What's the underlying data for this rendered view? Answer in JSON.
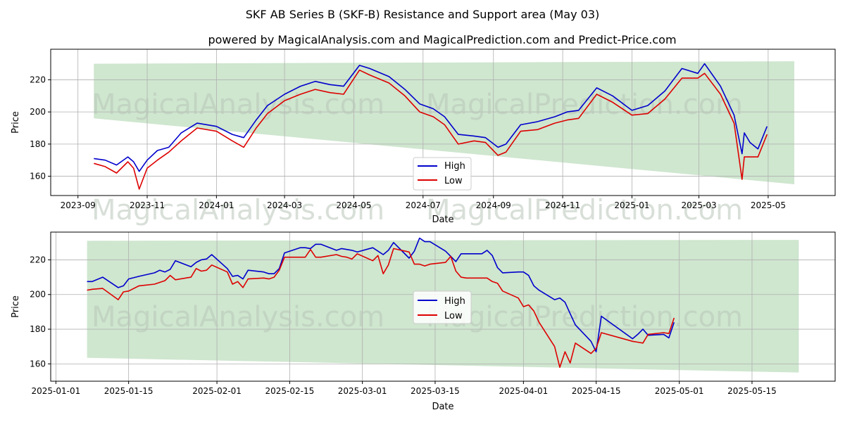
{
  "title": "SKF AB Series B (SKF-B) Resistance and Support area (May 03)",
  "subtitle": "powered by MagicalAnalysis.com and MagicalPrediction.com and Predict-Price.com",
  "watermarks": [
    "MagicalAnalysis.com",
    "MagicalPrediction.com"
  ],
  "colors": {
    "high": "#0000cc",
    "low": "#dd0000",
    "band": "#cfe6cf",
    "grid": "#b0b0b0"
  },
  "chart_data": [
    {
      "type": "line",
      "xlabel": "Date",
      "ylabel": "Price",
      "grid": true,
      "legend": "center",
      "xlim": [
        "2023-08-08",
        "2025-06-29"
      ],
      "ylim": [
        148,
        239
      ],
      "x_ticks": [
        "2023-09",
        "2023-11",
        "2024-01",
        "2024-03",
        "2024-05",
        "2024-07",
        "2024-09",
        "2024-11",
        "2025-01",
        "2025-03",
        "2025-05"
      ],
      "y_ticks": [
        160,
        180,
        200,
        220
      ],
      "band": {
        "x": [
          "2023-09-15",
          "2025-05-24"
        ],
        "upper": [
          230,
          231.5
        ],
        "lower": [
          196,
          155
        ]
      },
      "series": [
        {
          "name": "High",
          "color": "#0000cc",
          "x": [
            "2023-09-15",
            "2023-09-25",
            "2023-10-05",
            "2023-10-15",
            "2023-10-20",
            "2023-10-25",
            "2023-11-01",
            "2023-11-10",
            "2023-11-20",
            "2023-12-01",
            "2023-12-15",
            "2024-01-01",
            "2024-01-15",
            "2024-01-25",
            "2024-02-05",
            "2024-02-15",
            "2024-03-01",
            "2024-03-15",
            "2024-03-28",
            "2024-04-10",
            "2024-04-22",
            "2024-05-06",
            "2024-05-15",
            "2024-06-01",
            "2024-06-15",
            "2024-06-28",
            "2024-07-10",
            "2024-07-20",
            "2024-08-01",
            "2024-08-15",
            "2024-08-25",
            "2024-09-05",
            "2024-09-12",
            "2024-09-25",
            "2024-10-10",
            "2024-10-25",
            "2024-11-05",
            "2024-11-15",
            "2024-12-01",
            "2024-12-15",
            "2025-01-01",
            "2025-01-15",
            "2025-01-30",
            "2025-02-14",
            "2025-02-28",
            "2025-03-06",
            "2025-03-20",
            "2025-04-01",
            "2025-04-08",
            "2025-04-10",
            "2025-04-15",
            "2025-04-22",
            "2025-04-30"
          ],
          "values": [
            171,
            170,
            167,
            172,
            169,
            163,
            170,
            176,
            178,
            187,
            193,
            191,
            186,
            184,
            195,
            204,
            211,
            216,
            219,
            217,
            216,
            229,
            227,
            222,
            214,
            205,
            202,
            197,
            186,
            185,
            184,
            178,
            180,
            192,
            194,
            197,
            200,
            201,
            215,
            210,
            201,
            204,
            213,
            227,
            224,
            230,
            216,
            198,
            174,
            187,
            181,
            177,
            191
          ]
        },
        {
          "name": "Low",
          "color": "#dd0000",
          "x": [
            "2023-09-15",
            "2023-09-25",
            "2023-10-05",
            "2023-10-15",
            "2023-10-20",
            "2023-10-25",
            "2023-11-01",
            "2023-11-10",
            "2023-11-20",
            "2023-12-01",
            "2023-12-15",
            "2024-01-01",
            "2024-01-15",
            "2024-01-25",
            "2024-02-05",
            "2024-02-15",
            "2024-03-01",
            "2024-03-15",
            "2024-03-28",
            "2024-04-10",
            "2024-04-22",
            "2024-05-06",
            "2024-05-15",
            "2024-06-01",
            "2024-06-15",
            "2024-06-28",
            "2024-07-10",
            "2024-07-20",
            "2024-08-01",
            "2024-08-15",
            "2024-08-25",
            "2024-09-05",
            "2024-09-12",
            "2024-09-25",
            "2024-10-10",
            "2024-10-25",
            "2024-11-05",
            "2024-11-15",
            "2024-12-01",
            "2024-12-15",
            "2025-01-01",
            "2025-01-15",
            "2025-01-30",
            "2025-02-14",
            "2025-02-28",
            "2025-03-06",
            "2025-03-20",
            "2025-04-01",
            "2025-04-08",
            "2025-04-10",
            "2025-04-15",
            "2025-04-22",
            "2025-04-30"
          ],
          "values": [
            168,
            166,
            162,
            169,
            165,
            152,
            165,
            170,
            175,
            182,
            190,
            188,
            182,
            178,
            190,
            199,
            207,
            211,
            214,
            212,
            211,
            226,
            223,
            218,
            210,
            200,
            197,
            192,
            180,
            182,
            181,
            173,
            175,
            188,
            189,
            193,
            195,
            196,
            211,
            206,
            198,
            199,
            208,
            221,
            221,
            224,
            211,
            193,
            158,
            172,
            172,
            172,
            186
          ]
        }
      ]
    },
    {
      "type": "line",
      "xlabel": "Date",
      "ylabel": "Price",
      "grid": true,
      "legend": "center",
      "xlim": [
        "2024-12-31",
        "2025-05-31"
      ],
      "ylim": [
        150,
        236
      ],
      "x_ticks": [
        "2025-01-01",
        "2025-01-15",
        "2025-02-01",
        "2025-02-15",
        "2025-03-01",
        "2025-03-15",
        "2025-04-01",
        "2025-04-15",
        "2025-05-01",
        "2025-05-15"
      ],
      "y_ticks": [
        160,
        180,
        200,
        220
      ],
      "band": {
        "x": [
          "2025-01-07",
          "2025-05-24"
        ],
        "upper": [
          231,
          231.5
        ],
        "lower": [
          163.5,
          155
        ]
      },
      "series": [
        {
          "name": "High",
          "color": "#0000cc",
          "x": [
            "2025-01-07",
            "2025-01-08",
            "2025-01-10",
            "2025-01-13",
            "2025-01-14",
            "2025-01-15",
            "2025-01-17",
            "2025-01-20",
            "2025-01-21",
            "2025-01-22",
            "2025-01-23",
            "2025-01-24",
            "2025-01-27",
            "2025-01-28",
            "2025-01-29",
            "2025-01-30",
            "2025-01-31",
            "2025-02-03",
            "2025-02-04",
            "2025-02-05",
            "2025-02-06",
            "2025-02-07",
            "2025-02-10",
            "2025-02-11",
            "2025-02-12",
            "2025-02-13",
            "2025-02-14",
            "2025-02-17",
            "2025-02-18",
            "2025-02-19",
            "2025-02-20",
            "2025-02-21",
            "2025-02-24",
            "2025-02-25",
            "2025-02-26",
            "2025-02-27",
            "2025-02-28",
            "2025-03-03",
            "2025-03-04",
            "2025-03-05",
            "2025-03-06",
            "2025-03-07",
            "2025-03-10",
            "2025-03-11",
            "2025-03-12",
            "2025-03-13",
            "2025-03-14",
            "2025-03-17",
            "2025-03-18",
            "2025-03-19",
            "2025-03-20",
            "2025-03-21",
            "2025-03-24",
            "2025-03-25",
            "2025-03-26",
            "2025-03-27",
            "2025-03-28",
            "2025-03-31",
            "2025-04-01",
            "2025-04-02",
            "2025-04-03",
            "2025-04-04",
            "2025-04-07",
            "2025-04-08",
            "2025-04-09",
            "2025-04-10",
            "2025-04-11",
            "2025-04-14",
            "2025-04-15",
            "2025-04-16",
            "2025-04-22",
            "2025-04-23",
            "2025-04-24",
            "2025-04-25",
            "2025-04-28",
            "2025-04-29",
            "2025-04-30"
          ],
          "values": [
            207.5,
            207.5,
            210,
            204,
            205,
            209,
            210.5,
            212.5,
            214,
            213,
            214.5,
            219.5,
            216,
            218.5,
            220,
            220.5,
            223,
            215,
            210.5,
            211,
            209,
            214,
            213,
            212,
            212,
            215,
            224,
            227,
            227,
            226.5,
            229,
            229,
            225.5,
            226.5,
            226,
            225.5,
            224.5,
            227,
            225,
            223,
            225.5,
            230,
            221,
            225,
            232.5,
            230.5,
            230.5,
            225,
            222,
            219,
            223.5,
            223.5,
            223.5,
            225.5,
            222.5,
            215.5,
            212.5,
            213,
            213,
            211,
            205,
            202.5,
            197,
            198,
            195.5,
            189,
            182.5,
            173,
            167,
            187.5,
            174.5,
            177,
            180,
            176.5,
            177,
            175,
            184
          ]
        },
        {
          "name": "Low",
          "color": "#dd0000",
          "x": [
            "2025-01-07",
            "2025-01-08",
            "2025-01-10",
            "2025-01-13",
            "2025-01-14",
            "2025-01-15",
            "2025-01-17",
            "2025-01-20",
            "2025-01-21",
            "2025-01-22",
            "2025-01-23",
            "2025-01-24",
            "2025-01-27",
            "2025-01-28",
            "2025-01-29",
            "2025-01-30",
            "2025-01-31",
            "2025-02-03",
            "2025-02-04",
            "2025-02-05",
            "2025-02-06",
            "2025-02-07",
            "2025-02-10",
            "2025-02-11",
            "2025-02-12",
            "2025-02-13",
            "2025-02-14",
            "2025-02-17",
            "2025-02-18",
            "2025-02-19",
            "2025-02-20",
            "2025-02-21",
            "2025-02-24",
            "2025-02-25",
            "2025-02-26",
            "2025-02-27",
            "2025-02-28",
            "2025-03-03",
            "2025-03-04",
            "2025-03-05",
            "2025-03-06",
            "2025-03-07",
            "2025-03-10",
            "2025-03-11",
            "2025-03-12",
            "2025-03-13",
            "2025-03-14",
            "2025-03-17",
            "2025-03-18",
            "2025-03-19",
            "2025-03-20",
            "2025-03-21",
            "2025-03-24",
            "2025-03-25",
            "2025-03-26",
            "2025-03-27",
            "2025-03-28",
            "2025-03-31",
            "2025-04-01",
            "2025-04-02",
            "2025-04-03",
            "2025-04-04",
            "2025-04-07",
            "2025-04-08",
            "2025-04-09",
            "2025-04-10",
            "2025-04-11",
            "2025-04-14",
            "2025-04-15",
            "2025-04-16",
            "2025-04-22",
            "2025-04-23",
            "2025-04-24",
            "2025-04-25",
            "2025-04-28",
            "2025-04-29",
            "2025-04-30"
          ],
          "values": [
            202.5,
            203,
            203.5,
            197,
            201.5,
            202,
            205,
            206,
            207,
            208,
            211,
            208.5,
            210,
            215,
            213.5,
            214,
            217,
            213,
            206,
            207.5,
            204,
            209,
            209.5,
            209,
            210,
            214,
            221.5,
            221.5,
            221.5,
            226,
            221.5,
            221.5,
            223,
            222,
            221.5,
            220.5,
            223.5,
            219.5,
            222.5,
            212,
            217,
            226.5,
            224.5,
            217.5,
            217.5,
            216.5,
            217.5,
            218.5,
            222,
            213.5,
            210,
            209.5,
            209.5,
            209.5,
            207.5,
            206.5,
            202,
            198,
            193,
            194,
            190.5,
            184,
            170,
            158,
            167,
            160.5,
            172,
            166,
            169,
            178,
            173,
            172.5,
            172,
            177,
            178,
            177.5,
            186.5
          ]
        }
      ]
    }
  ]
}
